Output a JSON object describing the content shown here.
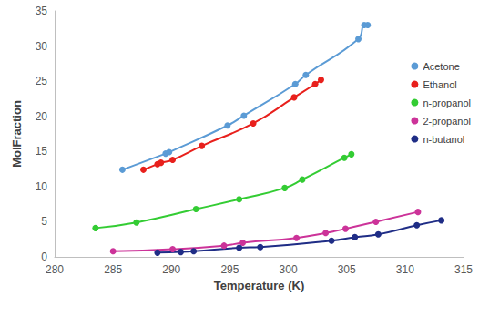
{
  "chart_data": {
    "type": "scatter",
    "x_label": "Temperature (K)",
    "y_label": "MolFraction",
    "xlim": [
      280,
      315
    ],
    "xticks": [
      280,
      285,
      290,
      295,
      300,
      305,
      310,
      315
    ],
    "ylim": [
      0,
      35
    ],
    "yticks": [
      0,
      5,
      10,
      15,
      20,
      25,
      30,
      35
    ],
    "grid": false,
    "legend": "right",
    "marker": "circle",
    "line_style": "smooth",
    "series": [
      {
        "name": "Acetone",
        "color": "#5b9bd5",
        "x": [
          285.8,
          289.5,
          289.8,
          294.8,
          296.2,
          300.6,
          301.5,
          306.0,
          306.5,
          306.8
        ],
        "values": [
          12.4,
          14.7,
          14.9,
          18.7,
          20.1,
          24.6,
          25.9,
          31.0,
          33.0,
          33.0
        ]
      },
      {
        "name": "Ethanol",
        "color": "#e8201c",
        "x": [
          287.6,
          288.8,
          289.1,
          290.1,
          292.6,
          297.0,
          300.5,
          302.3,
          302.8
        ],
        "values": [
          12.4,
          13.2,
          13.4,
          13.8,
          15.8,
          19.0,
          22.7,
          24.6,
          25.2
        ]
      },
      {
        "name": "n-propanol",
        "color": "#33cc33",
        "x": [
          283.5,
          287.0,
          292.1,
          295.8,
          299.7,
          301.2,
          304.8,
          305.4
        ],
        "values": [
          4.1,
          4.9,
          6.8,
          8.2,
          9.8,
          11.0,
          14.1,
          14.6
        ]
      },
      {
        "name": "2-propanol",
        "color": "#cc3399",
        "x": [
          285.0,
          290.1,
          294.5,
          296.1,
          300.7,
          303.2,
          304.9,
          307.5,
          311.1
        ],
        "values": [
          0.8,
          1.1,
          1.6,
          2.0,
          2.7,
          3.4,
          4.0,
          5.0,
          6.4
        ]
      },
      {
        "name": "n-butanol",
        "color": "#1f2d86",
        "x": [
          288.8,
          290.8,
          291.9,
          295.8,
          297.6,
          303.7,
          305.7,
          307.7,
          311.0,
          313.1
        ],
        "values": [
          0.6,
          0.7,
          0.8,
          1.3,
          1.4,
          2.3,
          2.8,
          3.2,
          4.5,
          5.2
        ]
      }
    ]
  }
}
